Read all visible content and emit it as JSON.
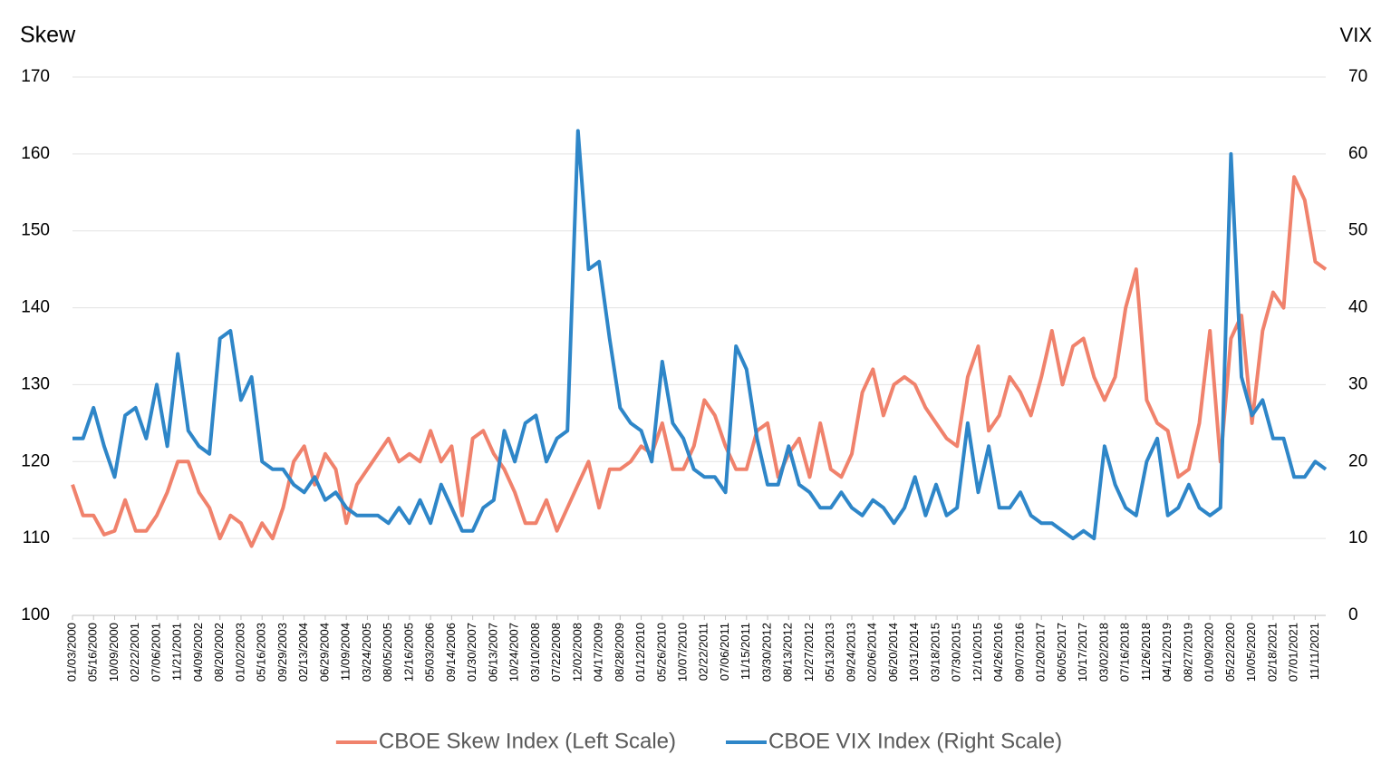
{
  "chart_data": {
    "type": "line",
    "ylabel": "Skew",
    "y2label": "VIX",
    "categories": [
      "01/03/2000",
      null,
      "05/16/2000",
      null,
      "10/09/2000",
      null,
      "02/22/2001",
      null,
      "07/06/2001",
      null,
      "11/21/2001",
      null,
      "04/09/2002",
      null,
      "08/20/2002",
      null,
      "01/02/2003",
      null,
      "05/16/2003",
      null,
      "09/29/2003",
      null,
      "02/13/2004",
      null,
      "06/29/2004",
      null,
      "11/09/2004",
      null,
      "03/24/2005",
      null,
      "08/05/2005",
      null,
      "12/16/2005",
      null,
      "05/03/2006",
      null,
      "09/14/2006",
      null,
      "01/30/2007",
      null,
      "06/13/2007",
      null,
      "10/24/2007",
      null,
      "03/10/2008",
      null,
      "07/22/2008",
      null,
      "12/02/2008",
      null,
      "04/17/2009",
      null,
      "08/28/2009",
      null,
      "01/12/2010",
      null,
      "05/26/2010",
      null,
      "10/07/2010",
      null,
      "02/22/2011",
      null,
      "07/06/2011",
      null,
      "11/15/2011",
      null,
      "03/30/2012",
      null,
      "08/13/2012",
      null,
      "12/27/2012",
      null,
      "05/13/2013",
      null,
      "09/24/2013",
      null,
      "02/06/2014",
      null,
      "06/20/2014",
      null,
      "10/31/2014",
      null,
      "03/18/2015",
      null,
      "07/30/2015",
      null,
      "12/10/2015",
      null,
      "04/26/2016",
      null,
      "09/07/2016",
      null,
      "01/20/2017",
      null,
      "06/05/2017",
      null,
      "10/17/2017",
      null,
      "03/02/2018",
      null,
      "07/16/2018",
      null,
      "11/26/2018",
      null,
      "04/12/2019",
      null,
      "08/27/2019",
      null,
      "01/09/2020",
      null,
      "05/22/2020",
      null,
      "10/05/2020",
      null,
      "02/18/2021",
      null,
      "07/01/2021",
      null,
      "11/11/2021",
      null
    ],
    "series": [
      {
        "name": "CBOE Skew Index (Left Scale)",
        "color": "#f0826c",
        "axis": "y",
        "values": [
          117,
          113,
          113,
          110.5,
          111,
          115,
          111,
          111,
          113,
          116,
          120,
          120,
          116,
          114,
          110,
          113,
          112,
          109,
          112,
          110,
          114,
          120,
          122,
          117,
          121,
          119,
          112,
          117,
          119,
          121,
          123,
          120,
          121,
          120,
          124,
          120,
          122,
          113,
          123,
          124,
          121,
          119,
          116,
          112,
          112,
          115,
          111,
          114,
          117,
          120,
          114,
          119,
          119,
          120,
          122,
          121,
          125,
          119,
          119,
          122,
          128,
          126,
          122,
          119,
          119,
          124,
          125,
          118,
          121,
          123,
          118,
          125,
          119,
          118,
          121,
          129,
          132,
          126,
          130,
          131,
          130,
          127,
          125,
          123,
          122,
          131,
          135,
          124,
          126,
          131,
          129,
          126,
          131,
          137,
          130,
          135,
          136,
          131,
          128,
          131,
          140,
          145,
          128,
          125,
          124,
          118,
          119,
          125,
          137,
          120,
          136,
          139,
          125,
          137,
          142,
          140,
          157,
          154,
          146,
          145
        ]
      },
      {
        "name": "CBOE VIX Index (Right Scale)",
        "color": "#2e86c8",
        "axis": "y2",
        "values": [
          23,
          23,
          27,
          22,
          18,
          26,
          27,
          23,
          30,
          22,
          34,
          24,
          22,
          21,
          36,
          37,
          28,
          31,
          20,
          19,
          19,
          17,
          16,
          18,
          15,
          16,
          14,
          13,
          13,
          13,
          12,
          14,
          12,
          15,
          12,
          17,
          14,
          11,
          11,
          14,
          15,
          24,
          20,
          25,
          26,
          20,
          23,
          24,
          63,
          45,
          46,
          36,
          27,
          25,
          24,
          20,
          33,
          25,
          23,
          19,
          18,
          18,
          16,
          35,
          32,
          23,
          17,
          17,
          22,
          17,
          16,
          14,
          14,
          16,
          14,
          13,
          15,
          14,
          12,
          14,
          18,
          13,
          17,
          13,
          14,
          25,
          16,
          22,
          14,
          14,
          16,
          13,
          12,
          12,
          11,
          10,
          11,
          10,
          22,
          17,
          14,
          13,
          20,
          23,
          13,
          14,
          17,
          14,
          13,
          14,
          60,
          31,
          26,
          28,
          23,
          23,
          18,
          18,
          20,
          19
        ]
      }
    ],
    "ylim": [
      100,
      170
    ],
    "yticks": [
      100,
      110,
      120,
      130,
      140,
      150,
      160,
      170
    ],
    "y2lim": [
      0,
      70
    ],
    "y2ticks": [
      0,
      10,
      20,
      30,
      40,
      50,
      60,
      70
    ],
    "grid": true,
    "legend": "bottom"
  }
}
